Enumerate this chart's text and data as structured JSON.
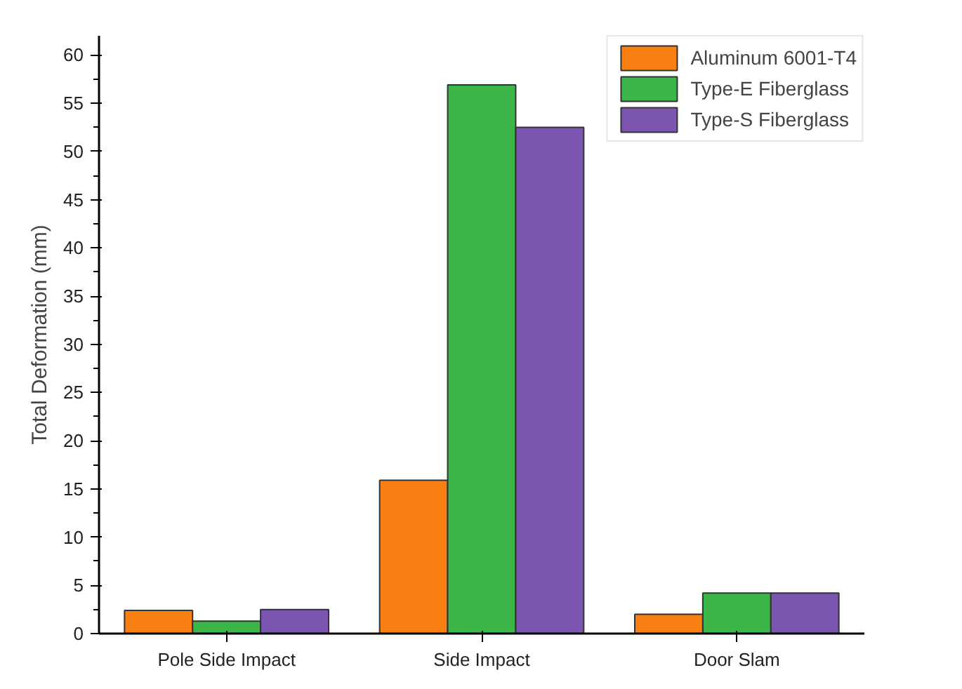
{
  "chart_data": {
    "type": "bar",
    "ylabel": "Total Deformation (mm)",
    "categories": [
      "Pole Side Impact",
      "Side Impact",
      "Door Slam"
    ],
    "series": [
      {
        "name": "Aluminum 6001-T4",
        "color": "#f98012",
        "values": [
          2.4,
          15.9,
          2.0
        ]
      },
      {
        "name": "Type-E Fiberglass",
        "color": "#3cb54a",
        "values": [
          1.3,
          56.9,
          4.2
        ]
      },
      {
        "name": "Type-S Fiberglass",
        "color": "#7b55b0",
        "values": [
          2.5,
          52.5,
          4.2
        ]
      }
    ],
    "ylim": [
      0,
      62
    ],
    "yticks": [
      0,
      5,
      10,
      15,
      20,
      25,
      30,
      35,
      40,
      45,
      50,
      55,
      60
    ],
    "grid": false,
    "legend": "top right"
  }
}
